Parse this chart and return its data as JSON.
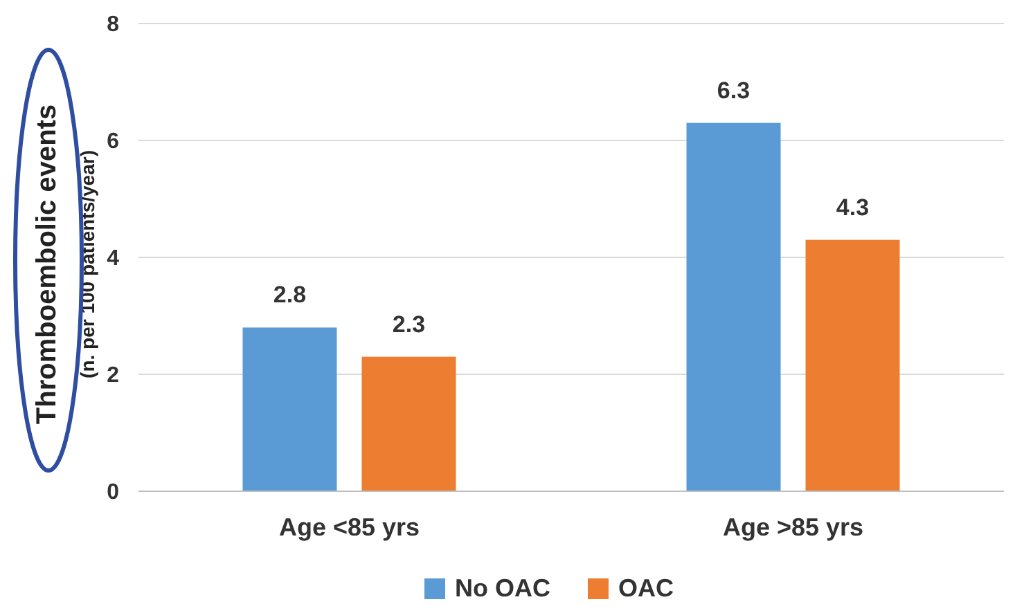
{
  "chart_data": {
    "type": "bar",
    "ylabel": "Thromboembolic events\n(n. per 100 patients/year)",
    "categories": [
      "Age <85 yrs",
      "Age >85 yrs"
    ],
    "series": [
      {
        "name": "No OAC",
        "color": "#5b9bd5",
        "values": [
          2.8,
          6.3
        ]
      },
      {
        "name": "OAC",
        "color": "#ed7d31",
        "values": [
          2.3,
          4.3
        ]
      }
    ],
    "ylim": [
      0,
      8
    ],
    "yticks": [
      0,
      2,
      4,
      6,
      8
    ],
    "grid": "y",
    "legend": "bottom",
    "data_labels": true
  }
}
